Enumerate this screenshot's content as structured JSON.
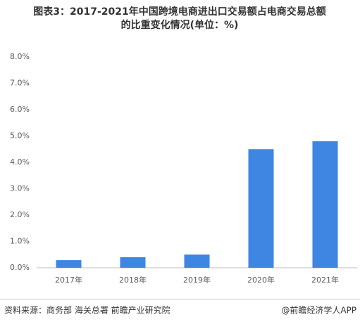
{
  "chart_data": {
    "type": "bar",
    "title": [
      "图表3：2017-2021年中国跨境电商进出口交易额占电商交易总额",
      "的比重变化情况(单位：%)"
    ],
    "categories": [
      "2017年",
      "2018年",
      "2019年",
      "2020年",
      "2021年"
    ],
    "values": [
      0.29,
      0.4,
      0.5,
      4.5,
      4.8
    ],
    "color": "#3f86e2",
    "ylim": [
      0,
      8
    ],
    "yticks": [
      {
        "value": 0,
        "label": "0.0%"
      },
      {
        "value": 1,
        "label": "1.0%"
      },
      {
        "value": 2,
        "label": "2.0%"
      },
      {
        "value": 3,
        "label": "3.0%"
      },
      {
        "value": 4,
        "label": "4.0%"
      },
      {
        "value": 5,
        "label": "5.0%"
      },
      {
        "value": 6,
        "label": "6.0%"
      },
      {
        "value": 7,
        "label": "7.0%"
      },
      {
        "value": 8,
        "label": "8.0%"
      }
    ],
    "grid": false,
    "source": "资料来源：商务部 海关总署 前瞻产业研究院",
    "credit": "@前瞻经济学人APP"
  }
}
